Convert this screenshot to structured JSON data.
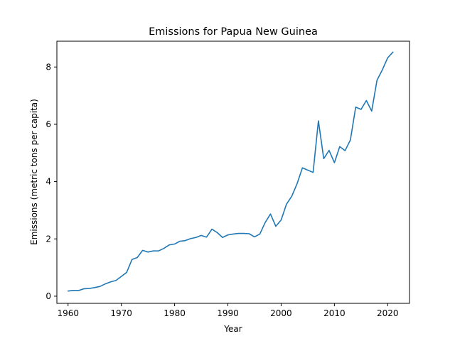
{
  "chart_data": {
    "type": "line",
    "title": "Emissions for Papua New Guinea",
    "xlabel": "Year",
    "ylabel": "Emissions (metric tons per capita)",
    "xlim": [
      1957.9,
      2024.1
    ],
    "ylim": [
      -0.25,
      8.9
    ],
    "xticks": [
      1960,
      1970,
      1980,
      1990,
      2000,
      2010,
      2020
    ],
    "yticks": [
      0,
      2,
      4,
      6,
      8
    ],
    "grid": false,
    "color": "#1f77b4",
    "series": [
      {
        "x": [
          1960,
          1961,
          1962,
          1963,
          1964,
          1965,
          1966,
          1967,
          1968,
          1969,
          1970,
          1971,
          1972,
          1973,
          1974,
          1975,
          1976,
          1977,
          1978,
          1979,
          1980,
          1981,
          1982,
          1983,
          1984,
          1985,
          1986,
          1987,
          1988,
          1989,
          1990,
          1991,
          1992,
          1993,
          1994,
          1995,
          1996,
          1997,
          1998,
          1999,
          2000,
          2001,
          2002,
          2003,
          2004,
          2005,
          2006,
          2007,
          2008,
          2009,
          2010,
          2011,
          2012,
          2013,
          2014,
          2015,
          2016,
          2017,
          2018,
          2019,
          2020,
          2021
        ],
        "y": [
          0.18,
          0.2,
          0.2,
          0.26,
          0.27,
          0.3,
          0.34,
          0.43,
          0.5,
          0.55,
          0.69,
          0.83,
          1.28,
          1.35,
          1.6,
          1.54,
          1.58,
          1.58,
          1.67,
          1.79,
          1.82,
          1.92,
          1.94,
          2.01,
          2.05,
          2.12,
          2.06,
          2.34,
          2.22,
          2.05,
          2.14,
          2.17,
          2.19,
          2.19,
          2.18,
          2.07,
          2.17,
          2.57,
          2.87,
          2.44,
          2.66,
          3.21,
          3.49,
          3.93,
          4.48,
          4.4,
          4.32,
          6.12,
          4.8,
          5.09,
          4.66,
          5.22,
          5.08,
          5.45,
          6.6,
          6.52,
          6.83,
          6.46,
          7.54,
          7.9,
          8.32,
          8.52
        ]
      }
    ]
  }
}
